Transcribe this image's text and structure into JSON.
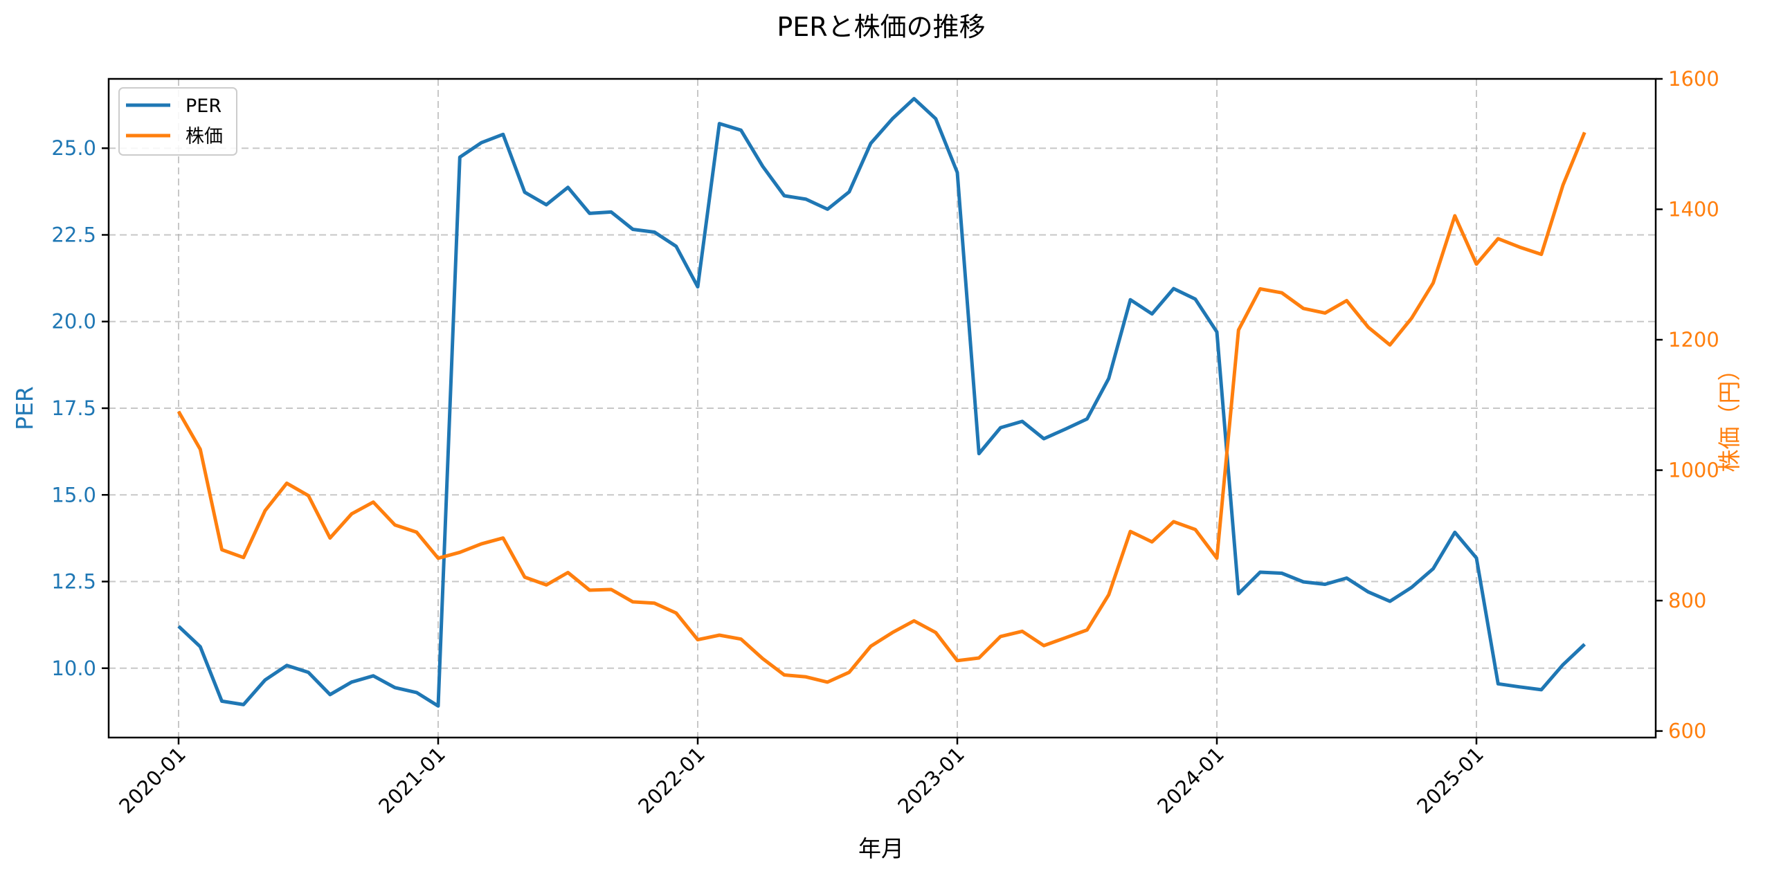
{
  "chart_data": {
    "type": "line",
    "title": "PERと株価の推移",
    "xlabel": "年月",
    "ylabel": "PER",
    "ylabel_right": "株価（円）",
    "x_ticks": [
      "2020-01",
      "2021-01",
      "2022-01",
      "2023-01",
      "2024-01",
      "2025-01"
    ],
    "y_ticks_left": [
      "10.0",
      "12.5",
      "15.0",
      "17.5",
      "20.0",
      "22.5",
      "25.0"
    ],
    "y_ticks_right": [
      "600",
      "800",
      "1000",
      "1200",
      "1400",
      "1600"
    ],
    "ylim": [
      8.0,
      27.0
    ],
    "ylim_right": [
      590,
      1600
    ],
    "grid": true,
    "legend_position": "upper left",
    "x": [
      "2020-01",
      "2020-02",
      "2020-03",
      "2020-04",
      "2020-05",
      "2020-06",
      "2020-07",
      "2020-08",
      "2020-09",
      "2020-10",
      "2020-11",
      "2020-12",
      "2021-01",
      "2021-02",
      "2021-03",
      "2021-04",
      "2021-05",
      "2021-06",
      "2021-07",
      "2021-08",
      "2021-09",
      "2021-10",
      "2021-11",
      "2021-12",
      "2022-01",
      "2022-02",
      "2022-03",
      "2022-04",
      "2022-05",
      "2022-06",
      "2022-07",
      "2022-08",
      "2022-09",
      "2022-10",
      "2022-11",
      "2022-12",
      "2023-01",
      "2023-02",
      "2023-03",
      "2023-04",
      "2023-05",
      "2023-06",
      "2023-07",
      "2023-08",
      "2023-09",
      "2023-10",
      "2023-11",
      "2023-12",
      "2024-01",
      "2024-02",
      "2024-03",
      "2024-04",
      "2024-05",
      "2024-06",
      "2024-07",
      "2024-08",
      "2024-09",
      "2024-10",
      "2024-11",
      "2024-12",
      "2025-01",
      "2025-02",
      "2025-03",
      "2025-04",
      "2025-05",
      "2025-06"
    ],
    "series": [
      {
        "name": "PER",
        "axis": "left",
        "color": "#1f77b4",
        "values": [
          11.21,
          10.62,
          9.05,
          8.95,
          9.66,
          10.08,
          9.88,
          9.24,
          9.6,
          9.78,
          9.44,
          9.3,
          8.91,
          24.74,
          25.16,
          25.4,
          23.73,
          23.37,
          23.87,
          23.12,
          23.16,
          22.66,
          22.58,
          22.17,
          21.0,
          25.71,
          25.52,
          24.48,
          23.63,
          23.53,
          23.24,
          23.74,
          25.14,
          25.85,
          26.43,
          25.85,
          24.3,
          16.19,
          16.94,
          17.12,
          16.62,
          16.9,
          17.19,
          18.36,
          20.63,
          20.22,
          20.95,
          20.65,
          19.7,
          12.15,
          12.77,
          12.74,
          12.49,
          12.42,
          12.6,
          12.2,
          11.93,
          12.33,
          12.87,
          13.92,
          13.18,
          9.55,
          9.46,
          9.38,
          10.1,
          10.69
        ]
      },
      {
        "name": "株価",
        "axis": "right",
        "color": "#ff7f0e",
        "values": [
          1090,
          1032,
          878,
          866,
          938,
          980,
          961,
          896,
          933,
          951,
          916,
          905,
          865,
          874,
          887,
          896,
          836,
          824,
          843,
          816,
          817,
          798,
          796,
          781,
          740,
          747,
          741,
          711,
          686,
          683,
          675,
          690,
          730,
          751,
          769,
          751,
          708,
          712,
          745,
          753,
          731,
          743,
          755,
          809,
          906,
          890,
          921,
          909,
          865,
          1215,
          1278,
          1272,
          1248,
          1241,
          1260,
          1219,
          1192,
          1233,
          1287,
          1390,
          1316,
          1355,
          1342,
          1331,
          1437,
          1518
        ]
      }
    ]
  },
  "colors": {
    "per": "#1f77b4",
    "price": "#ff7f0e",
    "grid": "#b0b0b0",
    "axis": "#000000"
  }
}
